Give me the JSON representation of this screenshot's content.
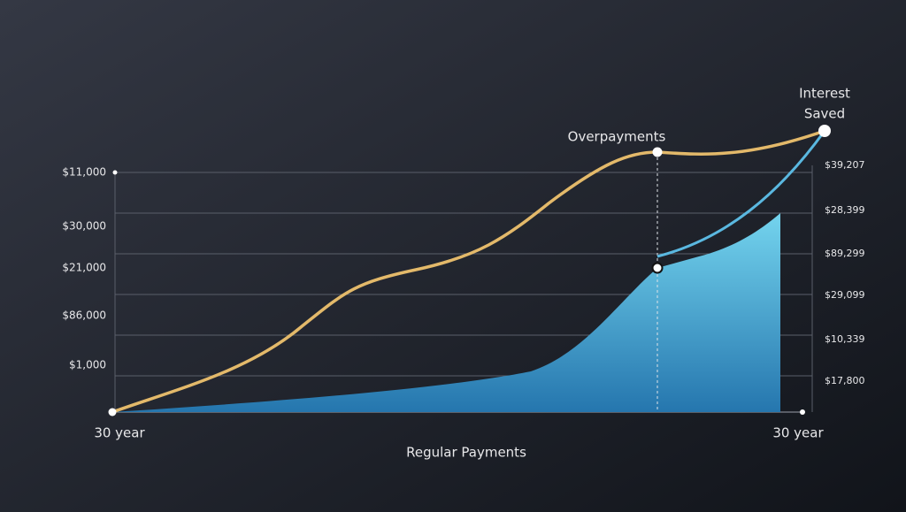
{
  "chart_data": {
    "type": "area",
    "left_axis_labels": [
      "$11,000",
      "$30,000",
      "$21,000",
      "$86,000",
      "$1,000"
    ],
    "right_axis_labels": [
      "$39,207",
      "$28,399",
      "$89,299",
      "$29,099",
      "$10,339",
      "$17,800"
    ],
    "x_start_label": "30 year",
    "x_end_label": "30 year",
    "x_axis_label": "Regular Payments",
    "annotations": {
      "overpayments": "Overpayments",
      "interest_saved": [
        "Interest",
        "Saved"
      ]
    }
  }
}
